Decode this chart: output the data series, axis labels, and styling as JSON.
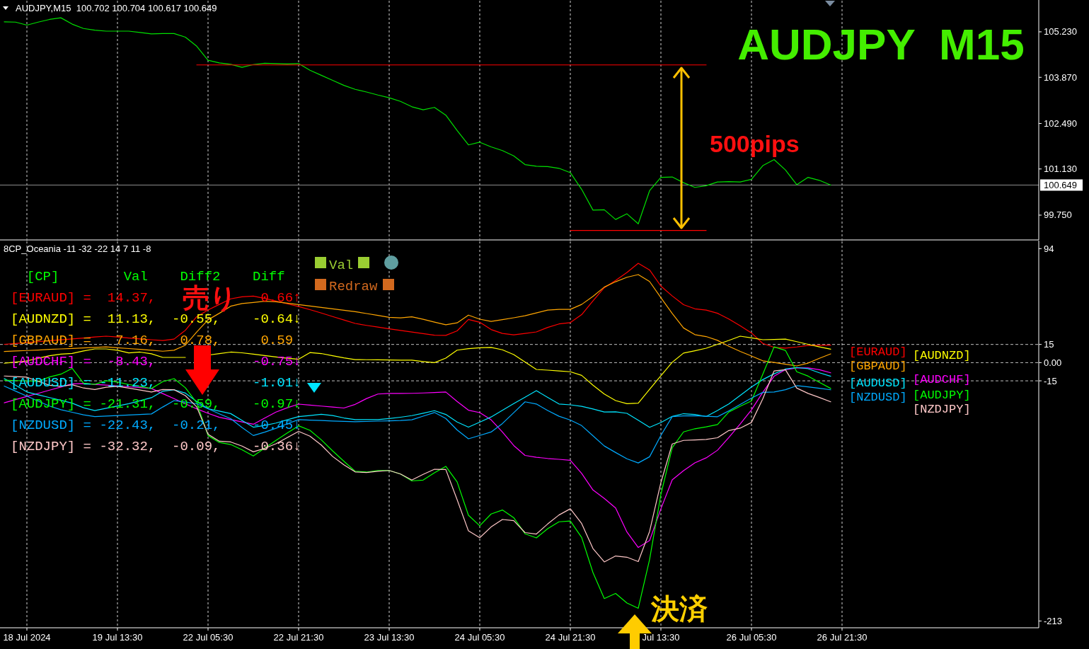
{
  "chart_data": [
    {
      "type": "line",
      "title": "AUDJPY  M15",
      "subtitle": "AUDJPY,M15  100.702 100.704 100.617 100.649",
      "annotations": [
        "500pips"
      ],
      "categories": [
        null,
        null,
        null,
        null,
        null,
        null,
        null,
        null,
        null,
        null,
        null,
        null,
        null,
        null,
        null,
        null,
        null,
        null,
        null,
        null,
        null,
        null,
        null,
        null,
        null,
        null,
        null,
        null,
        null,
        null,
        null,
        null,
        null,
        null,
        null,
        null,
        null,
        null,
        null,
        null,
        null,
        null,
        null,
        null,
        null,
        null,
        null,
        null,
        null,
        null,
        null,
        null,
        null,
        null,
        null,
        null,
        null,
        null,
        null,
        null,
        null,
        null,
        null,
        null,
        null,
        null,
        null,
        null,
        null,
        null,
        null,
        null,
        null,
        null,
        null,
        null,
        null,
        null,
        null,
        null,
        null,
        null,
        null,
        null,
        null,
        null,
        null,
        null,
        null,
        null,
        null,
        null
      ],
      "ylim": [
        99.03,
        106.16
      ],
      "yticks": [
        {
          "value": 99.75,
          "label": "99.750"
        },
        {
          "value": 101.13,
          "label": "101.130"
        },
        {
          "value": 102.49,
          "label": "102.490"
        },
        {
          "value": 103.87,
          "label": "103.870"
        },
        {
          "value": 105.23,
          "label": "105.230"
        }
      ],
      "tick_labels": "y",
      "grid": "x",
      "ref_lines": [
        {
          "axis": "y",
          "value": 100.649,
          "label": "100.649",
          "color": "#8c8c8c",
          "line_style": "solid"
        }
      ],
      "series": [
        {
          "color": "#00e000",
          "values": [
            105.53,
            105.52,
            105.43,
            105.52,
            105.6,
            105.65,
            105.46,
            105.33,
            105.28,
            105.25,
            105.25,
            105.25,
            105.21,
            105.17,
            105.18,
            105.18,
            105.07,
            104.8,
            104.38,
            104.3,
            104.26,
            104.17,
            104.25,
            104.29,
            104.28,
            104.27,
            104.28,
            104.08,
            103.93,
            103.78,
            103.63,
            103.51,
            103.43,
            103.34,
            103.26,
            103.15,
            102.99,
            102.9,
            102.97,
            102.74,
            102.28,
            101.85,
            101.93,
            101.79,
            101.68,
            101.52,
            101.26,
            101.21,
            101.2,
            101.15,
            101.02,
            100.52,
            99.9,
            99.91,
            99.62,
            99.79,
            99.49,
            100.48,
            100.88,
            100.89,
            100.72,
            100.58,
            100.63,
            100.74,
            100.75,
            100.74,
            100.82,
            101.23,
            101.41,
            101.1,
            100.66,
            100.88,
            100.79,
            100.65,
            null,
            null,
            null,
            null,
            null,
            null,
            null,
            null,
            null,
            null,
            null,
            null,
            null,
            null,
            null,
            null,
            null,
            null
          ]
        },
        {
          "color": "#ff0000",
          "values": [
            null,
            null,
            null,
            null,
            null,
            null,
            null,
            null,
            null,
            null,
            null,
            null,
            null,
            null,
            null,
            null,
            null,
            104.24,
            104.24,
            104.24,
            104.24,
            104.24,
            104.24,
            104.24,
            104.24,
            104.24,
            104.24,
            104.24,
            104.24,
            104.24,
            104.24,
            104.24,
            104.24,
            104.24,
            104.24,
            104.24,
            104.24,
            104.24,
            104.24,
            104.24,
            104.24,
            104.24,
            104.24,
            104.24,
            104.24,
            104.24,
            104.24,
            104.24,
            104.24,
            104.24,
            104.24,
            104.24,
            104.24,
            104.24,
            104.24,
            104.24,
            104.24,
            104.24,
            104.24,
            104.24,
            104.24,
            104.24,
            104.24,
            null,
            null,
            null,
            null,
            null,
            null,
            null,
            null,
            null,
            null,
            null,
            null,
            null,
            null,
            null,
            null,
            null,
            null,
            null,
            null,
            null,
            null,
            null,
            null,
            null,
            null,
            null,
            null,
            null
          ]
        },
        {
          "color": "#ff0000",
          "values": [
            null,
            null,
            null,
            null,
            null,
            null,
            null,
            null,
            null,
            null,
            null,
            null,
            null,
            null,
            null,
            null,
            null,
            null,
            null,
            null,
            null,
            null,
            null,
            null,
            null,
            null,
            null,
            null,
            null,
            null,
            null,
            null,
            null,
            null,
            null,
            null,
            null,
            null,
            null,
            null,
            null,
            null,
            null,
            null,
            null,
            null,
            null,
            null,
            null,
            null,
            99.29,
            99.29,
            99.29,
            99.29,
            99.29,
            99.29,
            99.29,
            99.29,
            99.29,
            99.29,
            99.29,
            99.29,
            99.29,
            null,
            null,
            null,
            null,
            null,
            null,
            null,
            null,
            null,
            null,
            null,
            null,
            null,
            null,
            null,
            null,
            null,
            null,
            null,
            null,
            null,
            null,
            null,
            null,
            null,
            null,
            null,
            null,
            null
          ]
        }
      ]
    },
    {
      "type": "line",
      "subtitle": "8CP_Oceania -11 -32 -22 14 7 11 -8",
      "annotations": [
        "  [CP]        Val    Diff2    Diff",
        "[EURAUD] =  14.37,             0.66↑",
        "[AUDNZD] =  11.13,  -0.55,    -0.64↓",
        "[GBPAUD] =   7.16,   0.78,     0.59",
        "[AUDCHF] =  -8.43,            -0.75↓",
        "[AUDUSD] = -11.23,            -1.01↓",
        "[AUDJPY] = -21.31,  -0.59,    -0.97↓",
        "[NZDUSD] = -22.43,  -0.21,    -0.45↓",
        "[NZDJPY] = -32.32,  -0.09,    -0.36↓",
        "売り",
        "決済",
        "Val",
        "Redraw"
      ],
      "categories": [
        null,
        null,
        "18 Jul 2024",
        null,
        null,
        null,
        null,
        null,
        null,
        null,
        "19 Jul 13:30",
        null,
        null,
        null,
        null,
        null,
        null,
        null,
        "22 Jul 05:30",
        null,
        null,
        null,
        null,
        null,
        null,
        null,
        "22 Jul 21:30",
        null,
        null,
        null,
        null,
        null,
        null,
        null,
        "23 Jul 13:30",
        null,
        null,
        null,
        null,
        null,
        null,
        null,
        "24 Jul 05:30",
        null,
        null,
        null,
        null,
        null,
        null,
        null,
        "24 Jul 21:30",
        null,
        null,
        null,
        null,
        null,
        null,
        null,
        "Jul 13:30",
        null,
        null,
        null,
        null,
        null,
        null,
        null,
        "26 Jul 05:30",
        null,
        null,
        null,
        null,
        null,
        null,
        null,
        "26 Jul 21:30",
        null,
        null,
        null,
        null,
        null,
        null,
        null,
        null,
        null,
        null,
        null,
        null,
        null,
        null,
        null,
        null,
        null
      ],
      "ylim": [
        -218,
        100
      ],
      "yticks": [
        -213,
        -15,
        {
          "value": 0,
          "label": "0.00"
        },
        15,
        94
      ],
      "grid": "x",
      "legend": "right",
      "ref_lines": [
        {
          "axis": "y",
          "value": 15,
          "color": "#c0c0c0",
          "line_style": "dashed"
        },
        {
          "axis": "y",
          "value": 0,
          "color": "#c0c0c0",
          "line_style": "dashed"
        },
        {
          "axis": "y",
          "value": -15,
          "color": "#c0c0c0",
          "line_style": "dashed"
        }
      ],
      "series": [
        {
          "name": "[EURAUD]",
          "color": "#ff0000",
          "values": [
            15.1,
            15.8,
            16.6,
            17.3,
            18.1,
            18.8,
            19.6,
            20.3,
            21.1,
            21.8,
            21.1,
            20.3,
            19.6,
            18.9,
            18.2,
            19.4,
            26.7,
            37.9,
            43.4,
            48.0,
            52.6,
            54.3,
            54.9,
            53.0,
            50.8,
            48.5,
            46.2,
            43.7,
            40.9,
            38.0,
            35.2,
            32.3,
            30.7,
            29.3,
            27.9,
            26.5,
            25.2,
            23.9,
            22.6,
            22.5,
            26.2,
            35.6,
            33.3,
            27.3,
            24.1,
            22.9,
            24.1,
            25.3,
            29.0,
            31.9,
            33.0,
            39.6,
            50.9,
            61.8,
            67.8,
            74.3,
            81.9,
            76.4,
            63.1,
            55.0,
            47.8,
            44.4,
            43.3,
            40.7,
            36.0,
            30.4,
            24.5,
            15.8,
            12.6,
            12.0,
            12.9,
            14.2,
            14.3,
            14.4,
            null,
            null,
            null,
            null,
            null,
            null,
            null,
            null,
            null,
            null,
            null,
            null,
            null,
            null,
            null,
            null,
            null,
            null
          ]
        },
        {
          "name": "[AUDNZD]",
          "color": "#ffff00",
          "values": [
            -0.5,
            0.4,
            1.4,
            3.7,
            5.7,
            7.0,
            7.6,
            9.6,
            11.3,
            11.3,
            10.2,
            8.0,
            8.7,
            7.3,
            4.3,
            4.3,
            4.3,
            null,
            6.2,
            7.4,
            8.7,
            8.1,
            7.0,
            5.8,
            4.7,
            3.6,
            2.8,
            8.3,
            7.5,
            5.7,
            3.9,
            2.5,
            2.4,
            2.3,
            2.2,
            2.1,
            2.0,
            0.9,
            0.0,
            3.7,
            10.3,
            11.5,
            12.3,
            12.6,
            10.6,
            6.6,
            0.5,
            -5.6,
            -6.2,
            -6.8,
            -7.5,
            -10.5,
            -18.6,
            -25.9,
            -31.3,
            -33.8,
            -33.4,
            -22.0,
            -10.8,
            0.3,
            7.9,
            9.8,
            11.9,
            15.1,
            18.3,
            21.8,
            20.4,
            18.9,
            19.1,
            19.4,
            17.3,
            15.1,
            13.0,
            11.1,
            null,
            null,
            null,
            null,
            null,
            null,
            null,
            null,
            null,
            null,
            null,
            null,
            null,
            null,
            null,
            null,
            null,
            null
          ]
        },
        {
          "name": "[GBPAUD]",
          "color": "#ffa500",
          "values": [
            9.2,
            9.6,
            10.0,
            10.4,
            10.9,
            11.3,
            11.7,
            12.1,
            12.6,
            13.0,
            12.3,
            11.6,
            10.9,
            10.2,
            9.4,
            10.2,
            14.4,
            25.2,
            35.3,
            40.7,
            46.5,
            48.7,
            49.6,
            50.6,
            50.2,
            49.0,
            47.9,
            46.7,
            45.5,
            44.4,
            43.2,
            42.0,
            40.5,
            38.9,
            37.3,
            36.9,
            37.8,
            35.7,
            33.4,
            31.2,
            32.8,
            39.2,
            35.8,
            34.0,
            35.5,
            37.0,
            38.7,
            41.0,
            43.3,
            43.9,
            43.9,
            48.0,
            54.6,
            62.3,
            66.7,
            70.4,
            72.6,
            66.9,
            53.5,
            40.6,
            28.6,
            23.1,
            21.5,
            18.4,
            13.5,
            9.3,
            5.5,
            1.5,
            0.1,
            -1.3,
            -2.7,
            -0.4,
            3.6,
            7.2,
            null,
            null,
            null,
            null,
            null,
            null,
            null,
            null,
            null,
            null,
            null,
            null,
            null,
            null,
            null,
            null,
            null,
            null
          ]
        },
        {
          "name": "[AUDCHF]",
          "color": "#ff00ff",
          "values": [
            -33.1,
            -30.5,
            -27.9,
            -25.3,
            -22.7,
            -20.1,
            -17.5,
            -17.2,
            -17.9,
            -18.5,
            -19.2,
            -19.9,
            -20.6,
            -21.3,
            -25.5,
            -29.7,
            -33.9,
            -38.1,
            -41.8,
            -45.1,
            -47.0,
            -48.9,
            -50.8,
            -45.7,
            -40.8,
            -37.2,
            -34.2,
            -35.0,
            -35.8,
            -36.6,
            -37.4,
            -34.4,
            -29.6,
            -25.9,
            -25.4,
            -25.4,
            -25.3,
            -25.0,
            -24.6,
            -24.2,
            -32.0,
            -39.2,
            -41.2,
            -47.1,
            -57.2,
            -68.3,
            -76.5,
            -78.0,
            -79.0,
            -79.7,
            -80.5,
            -91.3,
            -105.0,
            -112.0,
            -119.8,
            -139.6,
            -152.4,
            -146.7,
            -120.5,
            -96.6,
            -89.0,
            -82.6,
            -78.5,
            -72.2,
            -61.7,
            -50.6,
            -38.9,
            -24.5,
            -11.2,
            -5.8,
            -4.4,
            -4.4,
            -5.8,
            -8.4,
            null,
            null,
            null,
            null,
            null,
            null,
            null,
            null,
            null,
            null,
            null,
            null,
            null,
            null,
            null,
            null,
            null,
            null
          ]
        },
        {
          "name": "[AUDUSD]",
          "color": "#00e5ff",
          "values": [
            -13.1,
            -18.6,
            -24.2,
            -26.5,
            -28.8,
            -31.1,
            -33.4,
            -37.2,
            -39.5,
            -37.6,
            -35.7,
            -33.8,
            -31.4,
            -28.9,
            -23.6,
            -22.4,
            -25.1,
            -32.0,
            -38.0,
            -40.0,
            -42.0,
            -47.6,
            -53.2,
            -51.8,
            -49.8,
            -47.1,
            -44.5,
            -43.6,
            -42.6,
            -43.6,
            -45.6,
            -47.0,
            -47.0,
            -47.0,
            -46.1,
            -45.0,
            -43.7,
            -41.7,
            -39.6,
            -42.7,
            -48.9,
            -53.2,
            -49.1,
            -44.8,
            -39.3,
            -33.8,
            -28.5,
            -23.1,
            -28.6,
            -34.1,
            -34.8,
            -36.0,
            -38.2,
            -40.7,
            -40.5,
            -41.8,
            -47.5,
            -53.3,
            -49.4,
            -44.3,
            -42.1,
            -42.7,
            -44.4,
            -39.4,
            -34.0,
            -27.0,
            -20.0,
            -14.0,
            -9.2,
            -5.3,
            -4.0,
            -5.0,
            -8.4,
            -11.2,
            null,
            null,
            null,
            null,
            null,
            null,
            null,
            null,
            null,
            null,
            null,
            null,
            null,
            null,
            null,
            null,
            null,
            null
          ]
        },
        {
          "name": "[AUDJPY]",
          "color": "#00ff00",
          "values": [
            -14.4,
            -14.8,
            -15.1,
            -15.4,
            -11.8,
            -9.5,
            -4.7,
            -16.9,
            -17.9,
            -14.9,
            -16.0,
            -18.0,
            -19.7,
            -21.3,
            -15.7,
            -13.2,
            -20.7,
            -33.1,
            -60.1,
            -65.8,
            -67.5,
            -71.8,
            -77.0,
            -70.5,
            -64.1,
            -58.0,
            -52.1,
            -55.8,
            -63.6,
            -72.7,
            -81.3,
            -89.6,
            -90.2,
            -89.0,
            -88.9,
            -91.8,
            -97.5,
            -96.8,
            -90.8,
            -85.5,
            -98.3,
            -125.8,
            -134.5,
            -124.8,
            -121.5,
            -127.8,
            -141.1,
            -144.5,
            -136.9,
            -131.2,
            -130.5,
            -144.1,
            -173.1,
            -194.5,
            -190.3,
            -198.2,
            -202.5,
            -162.3,
            -108.6,
            -70.2,
            -57.1,
            -54.5,
            -52.9,
            -51.0,
            -40.7,
            -36.0,
            -31.6,
            -9.6,
            13.0,
            10.1,
            -7.5,
            -11.1,
            -16.3,
            -21.3,
            null,
            null,
            null,
            null,
            null,
            null,
            null,
            null,
            null,
            null,
            null,
            null,
            null,
            null,
            null,
            null,
            null,
            null
          ]
        },
        {
          "name": "[NZDUSD]",
          "color": "#00aaff",
          "values": [
            -19.3,
            -23.5,
            -27.6,
            -31.7,
            -35.8,
            -38.8,
            -40.9,
            -43.0,
            -44.5,
            -44.1,
            -43.6,
            -43.2,
            -42.7,
            -42.3,
            -36.6,
            -31.3,
            -32.5,
            -33.9,
            -38.0,
            -42.2,
            -46.2,
            -53.5,
            -60.1,
            -57.3,
            -54.1,
            -50.4,
            -47.0,
            -47.4,
            -47.7,
            -48.1,
            -48.4,
            -48.7,
            -48.5,
            -48.2,
            -48.0,
            -47.7,
            -47.1,
            -44.1,
            -41.1,
            -46.0,
            -55.5,
            -62.8,
            -60.0,
            -57.2,
            -50.2,
            -41.3,
            -32.3,
            -34.1,
            -39.5,
            -44.2,
            -47.3,
            -51.9,
            -60.3,
            -68.7,
            -74.1,
            -79.3,
            -82.7,
            -77.6,
            -60.0,
            -44.5,
            -43.9,
            -43.7,
            -44.2,
            -44.6,
            -39.7,
            -34.5,
            -29.2,
            -24.5,
            -24.2,
            -22.3,
            -19.0,
            -20.0,
            -21.2,
            -22.4,
            null,
            null,
            null,
            null,
            null,
            null,
            null,
            null,
            null,
            null,
            null,
            null,
            null,
            null,
            null,
            null,
            null,
            null
          ]
        },
        {
          "name": "[NZDJPY]",
          "color": "#ffc8c8",
          "values": [
            -11.0,
            -11.5,
            -12.0,
            -15.4,
            -18.7,
            -19.5,
            -18.2,
            -20.9,
            -22.2,
            -20.3,
            -19.5,
            -21.0,
            -22.6,
            -24.2,
            -22.2,
            -22.3,
            -27.2,
            -36.5,
            -59.0,
            -64.8,
            -65.4,
            -68.8,
            -73.5,
            -70.7,
            -66.9,
            -61.8,
            -56.7,
            -60.6,
            -67.9,
            -77.3,
            -84.2,
            -90.1,
            -90.6,
            -89.6,
            -88.9,
            -91.8,
            -96.8,
            -92.1,
            -87.9,
            -88.1,
            -113.0,
            -138.7,
            -144.3,
            -135.5,
            -129.3,
            -130.3,
            -140.1,
            -141.3,
            -133.0,
            -125.6,
            -120.5,
            -132.6,
            -153.3,
            -164.3,
            -159.4,
            -160.4,
            -164.0,
            -139.2,
            -98.8,
            -67.0,
            -64.1,
            -63.7,
            -63.3,
            -61.9,
            -56.0,
            -54.0,
            -49.3,
            -29.8,
            -6.8,
            -5.8,
            -21.0,
            -25.4,
            -28.7,
            -32.3,
            null,
            null,
            null,
            null,
            null,
            null,
            null,
            null,
            null,
            null,
            null,
            null,
            null,
            null,
            null,
            null,
            null,
            null
          ]
        }
      ]
    }
  ]
}
